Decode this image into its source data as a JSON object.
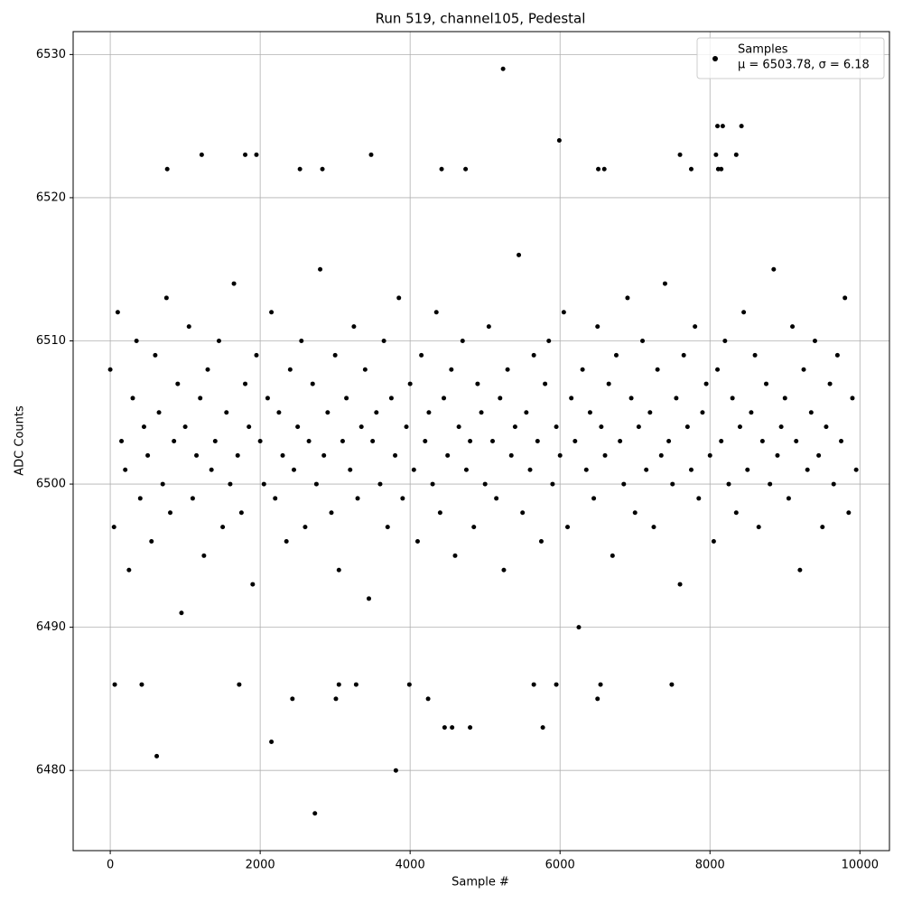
{
  "chart_data": {
    "type": "scatter",
    "title": "Run 519, channel105, Pedestal",
    "x_label": "Sample #",
    "y_label": "ADC Counts",
    "xlim": [
      -495,
      10394
    ],
    "ylim": [
      6474.4,
      6531.6
    ],
    "xticks": [
      0,
      2000,
      4000,
      6000,
      8000,
      10000
    ],
    "yticks": [
      6480,
      6490,
      6500,
      6510,
      6520,
      6530
    ],
    "grid": true,
    "legend_position": "upper right",
    "legend_note": "μ = 6503.78, σ = 6.18",
    "series": [
      {
        "name": "Samples",
        "color": "#000000",
        "x": [
          0,
          50,
          100,
          150,
          200,
          250,
          300,
          350,
          400,
          450,
          500,
          550,
          600,
          650,
          700,
          750,
          800,
          850,
          900,
          950,
          1000,
          1050,
          1100,
          1150,
          1200,
          1250,
          1300,
          1350,
          1400,
          1450,
          1500,
          1550,
          1600,
          1650,
          1700,
          1750,
          1800,
          1850,
          1900,
          1950,
          2000,
          2050,
          2100,
          2150,
          2200,
          2250,
          2300,
          2350,
          2400,
          2450,
          2500,
          2550,
          2600,
          2650,
          2700,
          2750,
          2800,
          2850,
          2900,
          2950,
          3000,
          3050,
          3100,
          3150,
          3200,
          3250,
          3300,
          3350,
          3400,
          3450,
          3500,
          3550,
          3600,
          3650,
          3700,
          3750,
          3800,
          3850,
          3900,
          3950,
          4000,
          4050,
          4100,
          4150,
          4200,
          4250,
          4300,
          4350,
          4400,
          4450,
          4500,
          4550,
          4600,
          4650,
          4700,
          4750,
          4800,
          4850,
          4900,
          4950,
          5000,
          5050,
          5100,
          5150,
          5200,
          5250,
          5300,
          5350,
          5400,
          5450,
          5500,
          5550,
          5600,
          5650,
          5700,
          5750,
          5800,
          5850,
          5900,
          5950,
          6000,
          6050,
          6100,
          6150,
          6200,
          6250,
          6300,
          6350,
          6400,
          6450,
          6500,
          6550,
          6600,
          6650,
          6700,
          6750,
          6800,
          6850,
          6900,
          6950,
          7000,
          7050,
          7100,
          7150,
          7200,
          7250,
          7300,
          7350,
          7400,
          7450,
          7500,
          7550,
          7600,
          7650,
          7700,
          7750,
          7800,
          7850,
          7900,
          7950,
          8000,
          8050,
          8100,
          8150,
          8200,
          8250,
          8300,
          8350,
          8400,
          8450,
          8500,
          8550,
          8600,
          8650,
          8700,
          8750,
          8800,
          8850,
          8900,
          8950,
          9000,
          9050,
          9100,
          9150,
          9200,
          9250,
          9300,
          9350,
          9400,
          9450,
          9500,
          9550,
          9600,
          9650,
          9700,
          9750,
          9800,
          9850,
          9900,
          9950,
          5240,
          5990,
          8100,
          8170,
          8420,
          8080,
          8350,
          7600,
          1220,
          1800,
          1950,
          3480,
          760,
          2530,
          2830,
          4420,
          4740,
          6510,
          6590,
          8110,
          8150,
          7750,
          620,
          2150,
          2730,
          3810,
          4460,
          4560,
          4800,
          5770,
          2430,
          3010,
          4240,
          6500,
          60,
          420,
          1720,
          3050,
          3280,
          3990,
          5650,
          5950,
          6540,
          7490
        ],
        "values": [
          6508,
          6497,
          6512,
          6503,
          6501,
          6494,
          6506,
          6510,
          6499,
          6504,
          6502,
          6496,
          6509,
          6505,
          6500,
          6513,
          6498,
          6503,
          6507,
          6491,
          6504,
          6511,
          6499,
          6502,
          6506,
          6495,
          6508,
          6501,
          6503,
          6510,
          6497,
          6505,
          6500,
          6514,
          6502,
          6498,
          6507,
          6504,
          6493,
          6509,
          6503,
          6500,
          6506,
          6512,
          6499,
          6505,
          6502,
          6496,
          6508,
          6501,
          6504,
          6510,
          6497,
          6503,
          6507,
          6500,
          6515,
          6502,
          6505,
          6498,
          6509,
          6494,
          6503,
          6506,
          6501,
          6511,
          6499,
          6504,
          6508,
          6492,
          6503,
          6505,
          6500,
          6510,
          6497,
          6506,
          6502,
          6513,
          6499,
          6504,
          6507,
          6501,
          6496,
          6509,
          6503,
          6505,
          6500,
          6512,
          6498,
          6506,
          6502,
          6508,
          6495,
          6504,
          6510,
          6501,
          6503,
          6497,
          6507,
          6505,
          6500,
          6511,
          6503,
          6499,
          6506,
          6494,
          6508,
          6502,
          6504,
          6516,
          6498,
          6505,
          6501,
          6509,
          6503,
          6496,
          6507,
          6510,
          6500,
          6504,
          6502,
          6512,
          6497,
          6506,
          6503,
          6490,
          6508,
          6501,
          6505,
          6499,
          6511,
          6504,
          6502,
          6507,
          6495,
          6509,
          6503,
          6500,
          6513,
          6506,
          6498,
          6504,
          6510,
          6501,
          6505,
          6497,
          6508,
          6502,
          6514,
          6503,
          6500,
          6506,
          6493,
          6509,
          6504,
          6501,
          6511,
          6499,
          6505,
          6507,
          6502,
          6496,
          6508,
          6503,
          6510,
          6500,
          6506,
          6498,
          6504,
          6512,
          6501,
          6505,
          6509,
          6497,
          6503,
          6507,
          6500,
          6515,
          6502,
          6504,
          6506,
          6499,
          6511,
          6503,
          6494,
          6508,
          6501,
          6505,
          6510,
          6502,
          6497,
          6504,
          6507,
          6500,
          6509,
          6503,
          6513,
          6498,
          6506,
          6501,
          6529,
          6524,
          6525,
          6525,
          6525,
          6523,
          6523,
          6523,
          6523,
          6523,
          6523,
          6523,
          6522,
          6522,
          6522,
          6522,
          6522,
          6522,
          6522,
          6522,
          6522,
          6522,
          6481,
          6482,
          6477,
          6480,
          6483,
          6483,
          6483,
          6483,
          6485,
          6485,
          6485,
          6485,
          6486,
          6486,
          6486,
          6486,
          6486,
          6486,
          6486,
          6486,
          6486,
          6486
        ]
      }
    ]
  }
}
